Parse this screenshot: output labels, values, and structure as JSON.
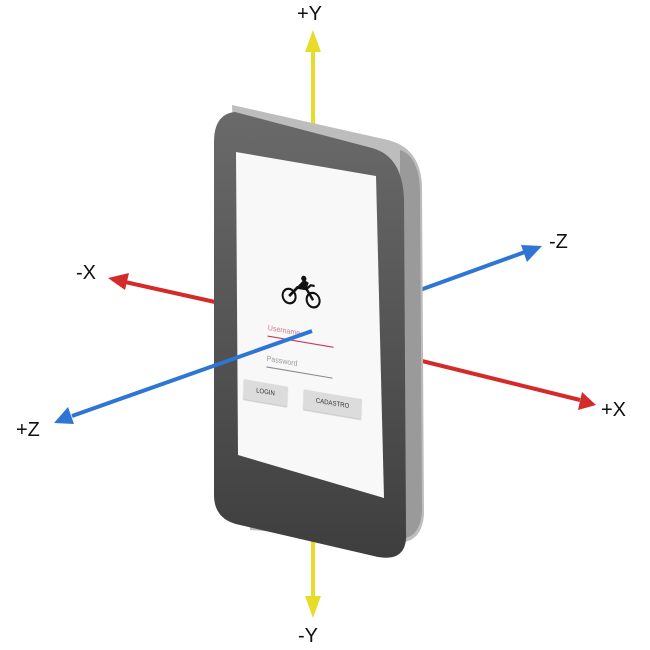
{
  "axes": {
    "pos_y": "+Y",
    "neg_y": "-Y",
    "pos_x": "+X",
    "neg_x": "-X",
    "pos_z": "+Z",
    "neg_z": "-Z"
  },
  "colors": {
    "x_axis": "#d42a2a",
    "y_axis": "#e8dc2a",
    "z_axis": "#2f75d3",
    "phone_body": "#595959",
    "screen": "#f8f8f8"
  },
  "login_screen": {
    "username_placeholder": "Username",
    "password_placeholder": "Password",
    "login_label": "LOGIN",
    "cadastro_label": "CADASTRO",
    "logo_icon": "motorcycle-icon"
  }
}
